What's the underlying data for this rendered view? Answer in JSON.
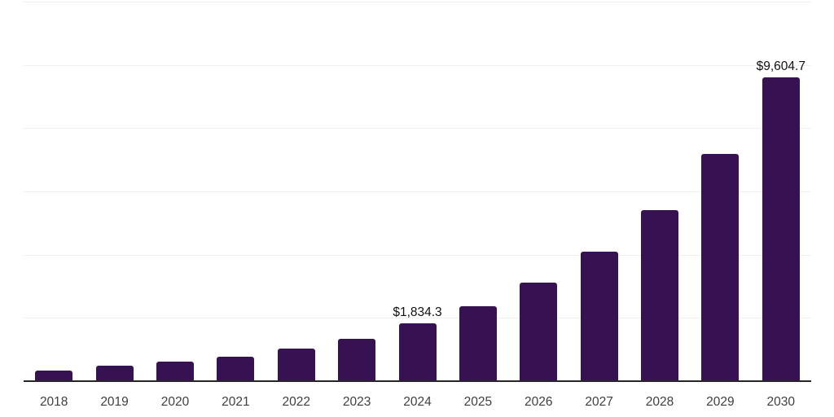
{
  "chart_data": {
    "type": "bar",
    "title": "",
    "xlabel": "",
    "ylabel": "",
    "categories": [
      "2018",
      "2019",
      "2020",
      "2021",
      "2022",
      "2023",
      "2024",
      "2025",
      "2026",
      "2027",
      "2028",
      "2029",
      "2030"
    ],
    "values": [
      340,
      490,
      610,
      785,
      1040,
      1350,
      1834.3,
      2375,
      3110,
      4100,
      5410,
      7180,
      9604.7
    ],
    "data_labels": [
      {
        "index": 6,
        "text": "$1,834.3"
      },
      {
        "index": 12,
        "text": "$9,604.7"
      }
    ],
    "ylim": [
      0,
      12000
    ],
    "gridline_step": 2000,
    "grid": "horizontal",
    "legend_position": "none",
    "colors": {
      "bar": "#371253",
      "gridline": "#f0f0f0",
      "axis_line": "#262626",
      "tick_label": "#3f3f3f",
      "data_label": "#121212",
      "background": "#ffffff"
    }
  }
}
